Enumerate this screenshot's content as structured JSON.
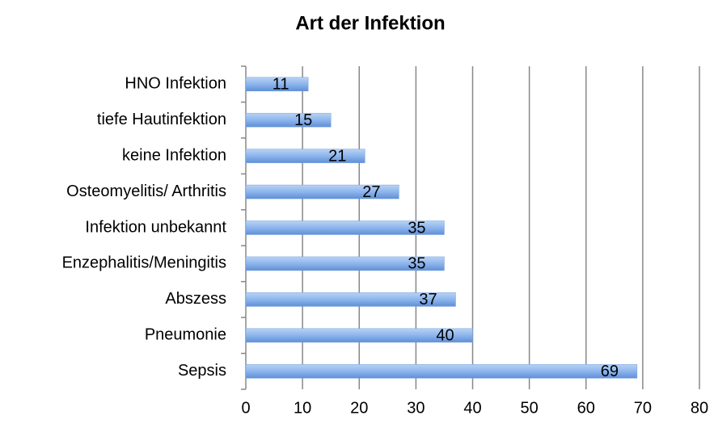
{
  "chart_data": {
    "type": "barh",
    "title": "Art der Infektion",
    "categories": [
      "HNO Infektion",
      "tiefe Hautinfektion",
      "keine Infektion",
      "Osteomyelitis/ Arthritis",
      "Infektion unbekannt",
      "Enzephalitis/Meningitis",
      "Abszess",
      "Pneumonie",
      "Sepsis"
    ],
    "values": [
      11,
      15,
      21,
      27,
      35,
      35,
      37,
      40,
      69
    ],
    "color": "#6f9fe0",
    "xlim": [
      0,
      80
    ],
    "xticks": [
      0,
      10,
      20,
      30,
      40,
      50,
      60,
      70,
      80
    ],
    "grid": true
  }
}
